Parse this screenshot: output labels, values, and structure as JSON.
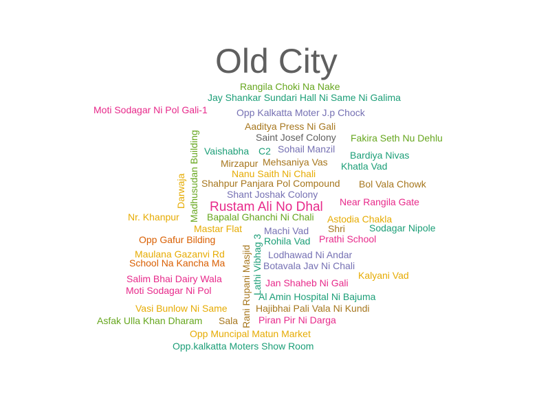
{
  "title": "Old City",
  "colors": {
    "title": "#5f5f5f",
    "green": "#66a61e",
    "teal": "#1b9e77",
    "purple": "#7570b3",
    "magenta": "#e7298a",
    "orange": "#d95f02",
    "gold": "#e6ab02",
    "brown": "#a6761d"
  },
  "words": [
    "Rangila Choki Na Nake",
    "Jay Shankar Sundari Hall Ni Same Ni Galima",
    "Moti Sodagar Ni Pol Gali-1",
    "Opp Kalkatta Moter J.p Chock",
    "Aaditya Press Ni Gali",
    "Saint Josef Colony",
    "Fakira Seth Nu Dehlu",
    "Vaishabha",
    "C2",
    "Sohail Manzil",
    "Bardiya Nivas",
    "Mirzapur",
    "Mehsaniya Vas",
    "Khatla Vad",
    "Nanu Saith Ni Chali",
    "Shahpur Panjara Pol Compound",
    "Bol Vala Chowk",
    "Shant Joshak Colony",
    "Rustam Ali No Dhal",
    "Near Rangila Gate",
    "Nr. Khanpur",
    "Bapalal Ghanchi Ni Chali",
    "Astodia Chakla",
    "Mastar Flat",
    "Machi Vad",
    "Shri",
    "Sodagar Nipole",
    "Opp Gafur Bilding",
    "Rohila Vad",
    "Prathi School",
    "Maulana Gazanvi Rd",
    "Lodhawad Ni Andar",
    "School Na Kancha Ma",
    "Botavala Jav Ni Chali",
    "Kalyani Vad",
    "Salim Bhai Dairy Wala",
    "Jan Shaheb Ni Gali",
    "Moti Sodagar Ni Pol",
    "Al Amin Hospital Ni Bajuma",
    "Vasi Bunlow Ni Same",
    "Hajibhai Pali Vala Ni Kundi",
    "Asfak Ulla Khan Dharam",
    "Sala",
    "Piran Pir Ni Darga",
    "Opp Muncipal Matun Market",
    "Opp.kalkatta Moters Show Room",
    "Madhusudan Building",
    "Darwaja",
    "Rani Rupani Masjid",
    "Lathi Vibhag 3"
  ]
}
